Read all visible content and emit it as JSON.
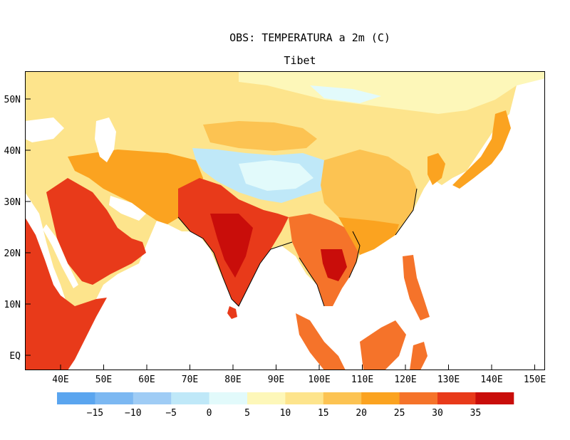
{
  "title": "OBS: TEMPERATURA a 2m (C)",
  "subtitle": "Tibet",
  "x_ticks": [
    "40E",
    "50E",
    "60E",
    "70E",
    "80E",
    "90E",
    "100E",
    "110E",
    "120E",
    "130E",
    "140E",
    "150E"
  ],
  "y_ticks": [
    "50N",
    "40N",
    "30N",
    "20N",
    "10N",
    "EQ"
  ],
  "legend": {
    "labels": [
      "-15",
      "-10",
      "-5",
      "0",
      "5",
      "10",
      "15",
      "20",
      "25",
      "30",
      "35"
    ],
    "colors": [
      "#5aa5ef",
      "#7cb8f2",
      "#9fccf5",
      "#bfe8f8",
      "#e2fafb",
      "#fdf7b9",
      "#fde48c",
      "#fcc352",
      "#fba320",
      "#f5732a",
      "#e83a1a",
      "#c90d0a"
    ]
  },
  "colors": {
    "sea": "#ffffff",
    "coast": "#000000",
    "tibet_plateau": "#bfe8f8",
    "tropical_land": "#e83a1a",
    "hot_core": "#c90d0a"
  }
}
